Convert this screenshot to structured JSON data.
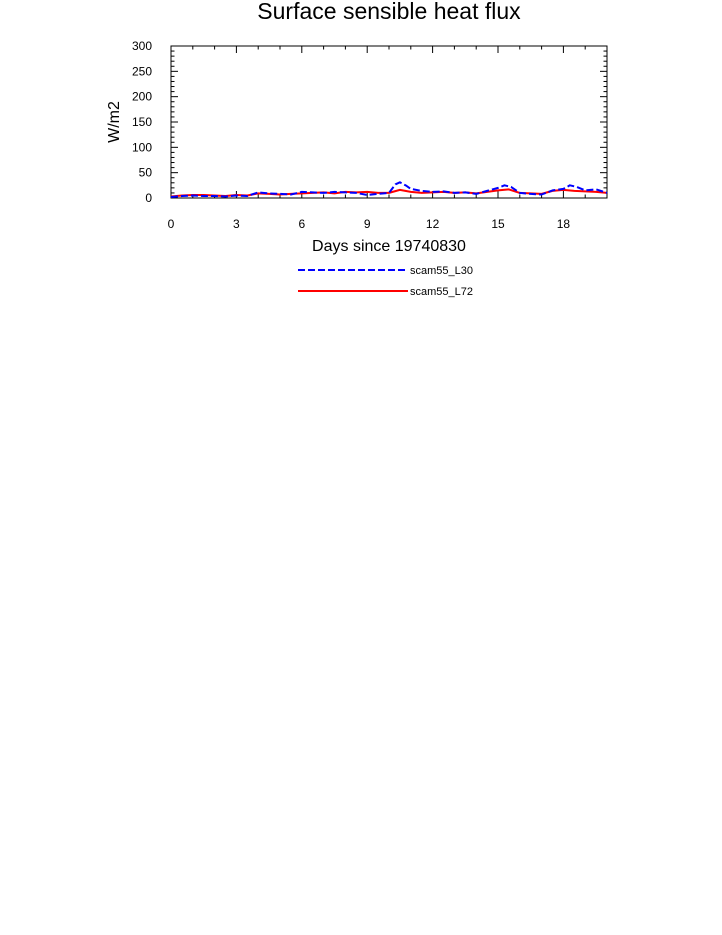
{
  "chart_data": {
    "type": "line",
    "title": "Surface sensible heat flux",
    "xlabel": "Days since 19740830",
    "ylabel": "W/m2",
    "xlim": [
      0,
      20
    ],
    "ylim": [
      0,
      300
    ],
    "xticks": [
      0,
      3,
      6,
      9,
      12,
      15,
      18
    ],
    "xtick_labels": [
      "0",
      "3",
      "6",
      "9",
      "12",
      "15",
      "18"
    ],
    "yticks": [
      0,
      50,
      100,
      150,
      200,
      250,
      300
    ],
    "ytick_labels": [
      "0",
      "50",
      "100",
      "150",
      "200",
      "250",
      "300"
    ],
    "grid": false,
    "legend_position": "bottom",
    "series": [
      {
        "name": "scam55_L30",
        "color": "#0000ff",
        "dash": "dashed",
        "x": [
          0,
          0.5,
          1,
          1.5,
          2,
          2.5,
          3,
          3.5,
          4,
          4.5,
          5,
          5.5,
          6,
          6.5,
          7,
          7.5,
          8,
          8.5,
          9,
          9.5,
          10,
          10.3,
          10.5,
          10.8,
          11,
          11.5,
          12,
          12.5,
          13,
          13.5,
          14,
          14.5,
          15,
          15.3,
          15.6,
          16,
          16.5,
          17,
          17.5,
          18,
          18.3,
          18.6,
          19,
          19.5,
          20
        ],
        "y": [
          2,
          4,
          5,
          4,
          4,
          3,
          5,
          4,
          11,
          9,
          8,
          7,
          12,
          11,
          10,
          12,
          11,
          10,
          6,
          8,
          10,
          27,
          31,
          24,
          18,
          14,
          12,
          13,
          10,
          11,
          8,
          14,
          20,
          25,
          22,
          10,
          8,
          7,
          15,
          18,
          25,
          22,
          15,
          17,
          10
        ]
      },
      {
        "name": "scam55_L72",
        "color": "#ff0000",
        "dash": "solid",
        "x": [
          0,
          0.5,
          1,
          1.5,
          2,
          2.5,
          3,
          3.5,
          4,
          4.5,
          5,
          5.5,
          6,
          6.5,
          7,
          7.5,
          8,
          8.5,
          9,
          9.5,
          10,
          10.5,
          11,
          11.5,
          12,
          12.5,
          13,
          13.5,
          14,
          14.5,
          15,
          15.5,
          16,
          16.5,
          17,
          17.5,
          18,
          18.5,
          19,
          19.5,
          20
        ],
        "y": [
          3,
          5,
          6,
          6,
          5,
          4,
          6,
          5,
          9,
          8,
          7,
          8,
          9,
          10,
          11,
          9,
          12,
          11,
          12,
          10,
          10,
          16,
          12,
          10,
          11,
          12,
          10,
          11,
          9,
          12,
          15,
          17,
          10,
          9,
          8,
          14,
          16,
          14,
          13,
          12,
          10
        ]
      }
    ]
  }
}
